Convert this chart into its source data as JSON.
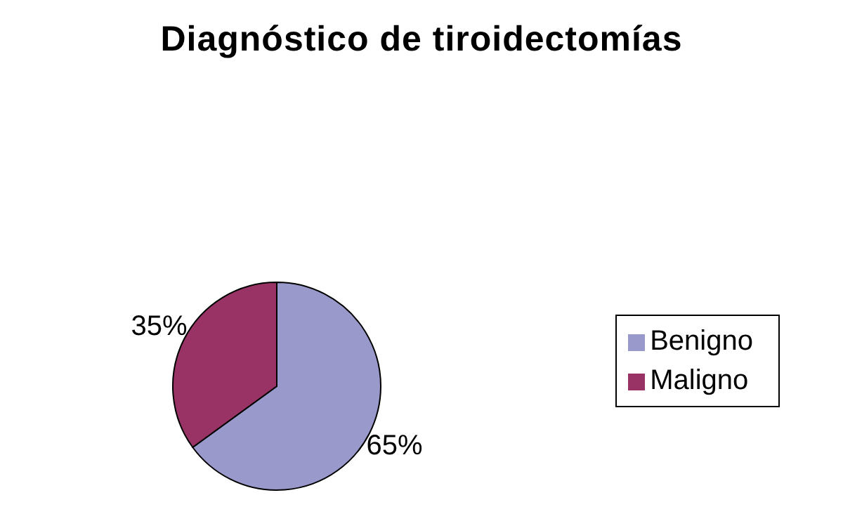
{
  "chart_data": {
    "type": "pie",
    "title": "Diagnóstico de tiroidectomías",
    "categories": [
      "Benigno",
      "Maligno"
    ],
    "values": [
      65,
      35
    ],
    "colors": [
      "#9999cc",
      "#993366"
    ],
    "value_labels": [
      "65%",
      "35%"
    ],
    "legend": "right"
  }
}
